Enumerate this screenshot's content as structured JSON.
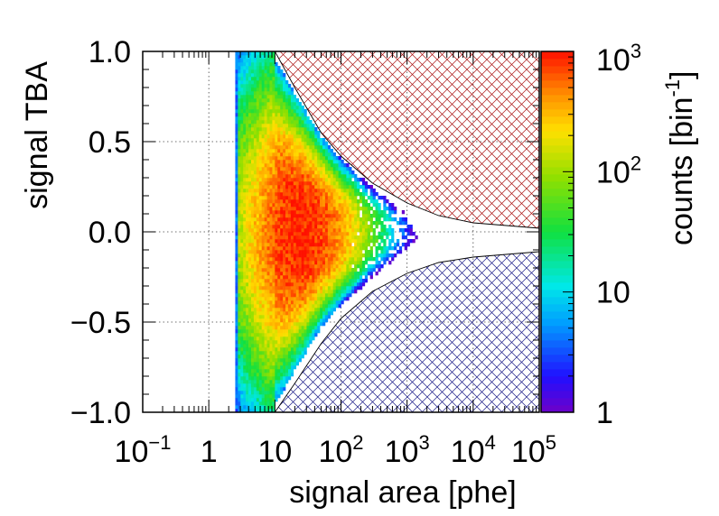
{
  "chart_data": {
    "type": "heatmap",
    "title": "",
    "xlabel": "signal area [phe]",
    "ylabel": "signal TBA",
    "x_scale": "log",
    "xlim": [
      0.1,
      100000
    ],
    "ylim": [
      -1.0,
      1.0
    ],
    "x_ticks": [
      {
        "value": 0.1,
        "base": "10",
        "exp": "−1"
      },
      {
        "value": 1,
        "base": "1",
        "exp": ""
      },
      {
        "value": 10,
        "base": "10",
        "exp": ""
      },
      {
        "value": 100,
        "base": "10",
        "exp": "2"
      },
      {
        "value": 1000,
        "base": "10",
        "exp": "3"
      },
      {
        "value": 10000,
        "base": "10",
        "exp": "4"
      },
      {
        "value": 100000,
        "base": "10",
        "exp": "5"
      }
    ],
    "y_ticks": [
      {
        "value": 1.0,
        "label": "1.0"
      },
      {
        "value": 0.5,
        "label": "0.5"
      },
      {
        "value": 0.0,
        "label": "0.0"
      },
      {
        "value": -0.5,
        "label": "−0.5"
      },
      {
        "value": -1.0,
        "label": "−1.0"
      }
    ],
    "grid": true,
    "colorbar": {
      "label_main": "counts [bin",
      "label_exp": "-1",
      "label_close": "]",
      "scale": "log",
      "range": [
        1,
        1000
      ],
      "ticks": [
        {
          "value": 1,
          "base": "1",
          "exp": ""
        },
        {
          "value": 10,
          "base": "10",
          "exp": ""
        },
        {
          "value": 100,
          "base": "10",
          "exp": "2"
        },
        {
          "value": 1000,
          "base": "10",
          "exp": "3"
        }
      ]
    },
    "distribution": {
      "x_min": 2.5,
      "peak_x": 25,
      "peak_y": 0.0,
      "peak_counts": 900,
      "tail_max_x": 3000
    },
    "exclusion_regions": [
      {
        "side": "upper",
        "color": "#aa1111",
        "pattern": "crosshatch",
        "boundary": [
          [
            10,
            1.0
          ],
          [
            20,
            0.8
          ],
          [
            50,
            0.55
          ],
          [
            100,
            0.42
          ],
          [
            300,
            0.27
          ],
          [
            1000,
            0.16
          ],
          [
            3000,
            0.09
          ],
          [
            10000,
            0.05
          ],
          [
            100000,
            0.02
          ]
        ]
      },
      {
        "side": "lower",
        "color": "#1a1a88",
        "pattern": "crosshatch",
        "boundary": [
          [
            10,
            -1.0
          ],
          [
            20,
            -0.84
          ],
          [
            50,
            -0.62
          ],
          [
            100,
            -0.48
          ],
          [
            300,
            -0.33
          ],
          [
            1000,
            -0.23
          ],
          [
            3000,
            -0.17
          ],
          [
            10000,
            -0.14
          ],
          [
            100000,
            -0.11
          ]
        ]
      }
    ]
  }
}
